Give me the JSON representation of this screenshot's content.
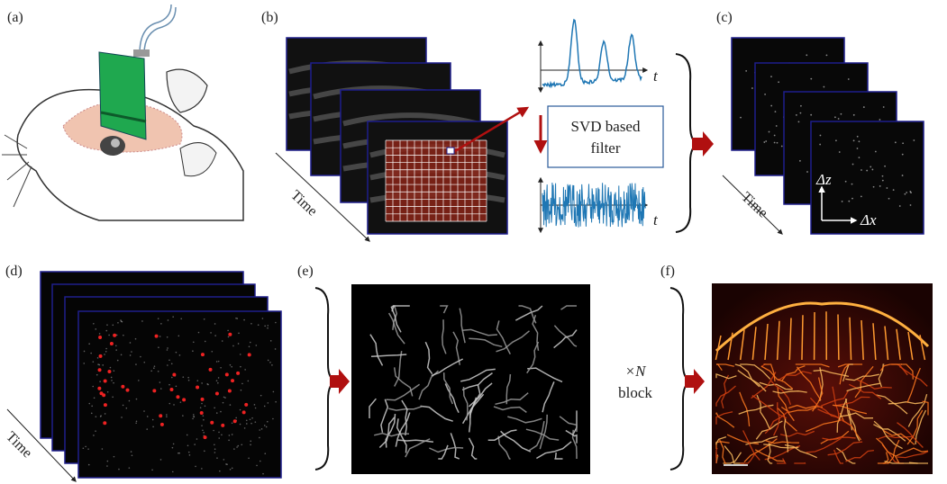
{
  "panels": [
    "(a)",
    "(b)",
    "(c)",
    "(d)",
    "(e)",
    "(f)"
  ],
  "time_labels": [
    "Time",
    "Time",
    "Time"
  ],
  "signal_axis_labels": [
    "t",
    "t"
  ],
  "filter": {
    "lines": [
      "SVD based",
      "filter"
    ]
  },
  "axes": {
    "z": "Δz",
    "x": "Δx"
  },
  "repeat": {
    "factor": "×N",
    "unit": "block"
  }
}
